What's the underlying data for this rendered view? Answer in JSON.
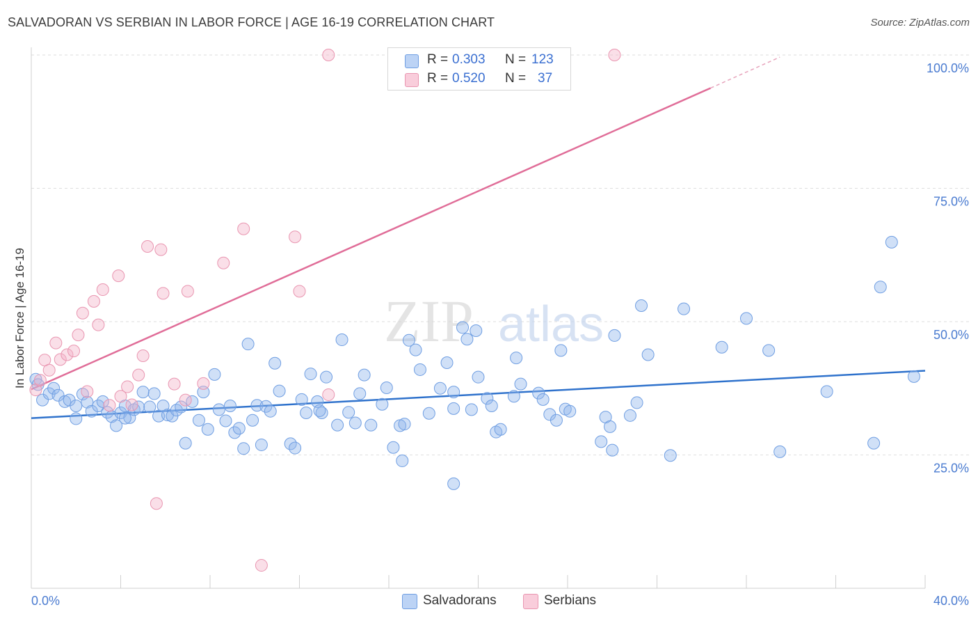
{
  "title": "SALVADORAN VS SERBIAN IN LABOR FORCE | AGE 16-19 CORRELATION CHART",
  "source": "Source: ZipAtlas.com",
  "watermark": {
    "zip": "ZIP",
    "atlas": "atlas"
  },
  "legend": {
    "r_label": "R =",
    "n_label": "N =",
    "rows": [
      {
        "r": "0.303",
        "n": "123"
      },
      {
        "r": "0.520",
        "n": "37"
      }
    ]
  },
  "chart_data": {
    "type": "scatter",
    "title": "SALVADORAN VS SERBIAN IN LABOR FORCE | AGE 16-19 CORRELATION CHART",
    "ylabel": "In Labor Force | Age 16-19",
    "xlabel": "",
    "xlim": [
      0,
      40
    ],
    "ylim": [
      0,
      100
    ],
    "x_tick_labels": [
      "0.0%",
      "40.0%"
    ],
    "y_ticks": [
      25,
      50,
      75,
      100
    ],
    "y_tick_labels": [
      "25.0%",
      "50.0%",
      "75.0%",
      "100.0%"
    ],
    "grid": true,
    "legend_placement": "bottom",
    "series": [
      {
        "name": "Salvadorans",
        "color": "#8fb4ec",
        "stroke": "#6f9ee2",
        "r": 0.303,
        "n": 123,
        "trend": {
          "x0": 0,
          "y0": 31.9,
          "x1": 40,
          "y1": 40.8
        },
        "points": [
          [
            0.2,
            39.2
          ],
          [
            0.3,
            38.2
          ],
          [
            0.5,
            35.3
          ],
          [
            0.8,
            36.5
          ],
          [
            1.0,
            37.5
          ],
          [
            1.2,
            36.2
          ],
          [
            1.5,
            35.0
          ],
          [
            1.7,
            35.3
          ],
          [
            2.0,
            34.2
          ],
          [
            2.3,
            36.4
          ],
          [
            2.5,
            34.9
          ],
          [
            2.7,
            33.2
          ],
          [
            3.0,
            34.2
          ],
          [
            3.2,
            35.0
          ],
          [
            3.4,
            33.0
          ],
          [
            3.6,
            32.2
          ],
          [
            3.8,
            30.5
          ],
          [
            4.0,
            32.9
          ],
          [
            4.2,
            34.2
          ],
          [
            4.4,
            32.0
          ],
          [
            4.6,
            33.5
          ],
          [
            4.8,
            34.0
          ],
          [
            5.0,
            36.8
          ],
          [
            5.3,
            34.0
          ],
          [
            5.5,
            36.5
          ],
          [
            5.7,
            32.3
          ],
          [
            5.9,
            34.2
          ],
          [
            6.1,
            32.5
          ],
          [
            6.3,
            32.3
          ],
          [
            6.5,
            33.4
          ],
          [
            6.7,
            34.0
          ],
          [
            6.9,
            27.2
          ],
          [
            7.2,
            35.0
          ],
          [
            7.5,
            31.5
          ],
          [
            7.7,
            36.8
          ],
          [
            7.9,
            29.8
          ],
          [
            8.2,
            40.1
          ],
          [
            8.4,
            33.5
          ],
          [
            8.7,
            31.4
          ],
          [
            8.9,
            34.2
          ],
          [
            9.1,
            29.2
          ],
          [
            9.3,
            30.0
          ],
          [
            9.5,
            26.2
          ],
          [
            9.7,
            45.8
          ],
          [
            9.9,
            31.5
          ],
          [
            10.1,
            34.3
          ],
          [
            10.3,
            26.9
          ],
          [
            10.5,
            34.1
          ],
          [
            10.7,
            33.2
          ],
          [
            10.9,
            42.2
          ],
          [
            11.1,
            37.0
          ],
          [
            11.6,
            27.1
          ],
          [
            11.8,
            26.3
          ],
          [
            12.1,
            35.4
          ],
          [
            12.3,
            32.9
          ],
          [
            12.5,
            40.2
          ],
          [
            12.8,
            35.0
          ],
          [
            13.0,
            32.9
          ],
          [
            13.2,
            39.6
          ],
          [
            13.7,
            30.6
          ],
          [
            13.9,
            46.6
          ],
          [
            14.2,
            33.0
          ],
          [
            14.5,
            31.0
          ],
          [
            14.7,
            36.5
          ],
          [
            14.9,
            40.0
          ],
          [
            15.2,
            30.6
          ],
          [
            15.7,
            34.5
          ],
          [
            15.9,
            37.6
          ],
          [
            16.2,
            26.4
          ],
          [
            16.5,
            30.5
          ],
          [
            16.7,
            30.8
          ],
          [
            16.9,
            46.5
          ],
          [
            17.2,
            44.7
          ],
          [
            17.4,
            41.0
          ],
          [
            17.8,
            32.8
          ],
          [
            18.3,
            37.5
          ],
          [
            18.6,
            42.3
          ],
          [
            18.9,
            36.8
          ],
          [
            18.9,
            33.7
          ],
          [
            19.3,
            48.9
          ],
          [
            19.5,
            46.7
          ],
          [
            19.7,
            33.5
          ],
          [
            19.9,
            48.3
          ],
          [
            20.0,
            39.6
          ],
          [
            20.4,
            35.6
          ],
          [
            20.6,
            34.2
          ],
          [
            20.8,
            29.3
          ],
          [
            21.0,
            29.8
          ],
          [
            21.6,
            36.0
          ],
          [
            21.7,
            43.2
          ],
          [
            21.9,
            38.3
          ],
          [
            22.7,
            36.6
          ],
          [
            22.9,
            35.4
          ],
          [
            23.2,
            32.6
          ],
          [
            23.5,
            31.5
          ],
          [
            23.7,
            44.6
          ],
          [
            23.9,
            33.6
          ],
          [
            24.1,
            33.2
          ],
          [
            25.5,
            27.5
          ],
          [
            25.7,
            32.1
          ],
          [
            25.9,
            30.3
          ],
          [
            26.1,
            47.4
          ],
          [
            26.8,
            32.4
          ],
          [
            27.1,
            34.8
          ],
          [
            27.3,
            53.0
          ],
          [
            27.6,
            43.8
          ],
          [
            28.6,
            24.9
          ],
          [
            29.2,
            52.4
          ],
          [
            30.9,
            45.2
          ],
          [
            32.0,
            50.6
          ],
          [
            33.0,
            44.6
          ],
          [
            33.5,
            25.6
          ],
          [
            35.6,
            36.9
          ],
          [
            37.7,
            27.2
          ],
          [
            38.0,
            56.5
          ],
          [
            38.5,
            64.9
          ],
          [
            39.5,
            39.7
          ],
          [
            2.0,
            31.8
          ],
          [
            18.9,
            19.6
          ],
          [
            16.6,
            23.9
          ],
          [
            26.0,
            25.9
          ],
          [
            4.2,
            31.9
          ],
          [
            12.9,
            33.3
          ]
        ]
      },
      {
        "name": "Serbians",
        "color": "#f4b3c8",
        "stroke": "#e995b0",
        "r": 0.52,
        "n": 37,
        "trend": {
          "x0": 0,
          "y0": 37.3,
          "x1": 30.4,
          "y1": 93.8,
          "dash_to_x": 33.5,
          "dash_to_y": 99.6
        },
        "points": [
          [
            0.2,
            37.2
          ],
          [
            0.4,
            39.0
          ],
          [
            0.6,
            42.8
          ],
          [
            0.8,
            40.9
          ],
          [
            1.1,
            46.0
          ],
          [
            1.3,
            42.9
          ],
          [
            1.6,
            43.8
          ],
          [
            1.9,
            44.5
          ],
          [
            2.1,
            47.5
          ],
          [
            2.3,
            51.6
          ],
          [
            2.5,
            36.9
          ],
          [
            2.8,
            53.8
          ],
          [
            3.0,
            49.4
          ],
          [
            3.2,
            56.0
          ],
          [
            3.5,
            34.3
          ],
          [
            3.9,
            58.6
          ],
          [
            4.0,
            36.0
          ],
          [
            4.3,
            37.8
          ],
          [
            4.5,
            34.4
          ],
          [
            4.8,
            40.0
          ],
          [
            5.0,
            43.6
          ],
          [
            5.2,
            64.1
          ],
          [
            5.6,
            15.9
          ],
          [
            5.8,
            63.5
          ],
          [
            5.9,
            55.3
          ],
          [
            6.4,
            38.3
          ],
          [
            6.9,
            35.3
          ],
          [
            7.0,
            55.7
          ],
          [
            7.7,
            38.4
          ],
          [
            8.6,
            61.0
          ],
          [
            9.5,
            67.4
          ],
          [
            10.3,
            4.3
          ],
          [
            11.8,
            65.9
          ],
          [
            12.0,
            55.7
          ],
          [
            13.3,
            36.3
          ],
          [
            13.3,
            100.0
          ],
          [
            26.1,
            100.0
          ]
        ]
      }
    ]
  }
}
